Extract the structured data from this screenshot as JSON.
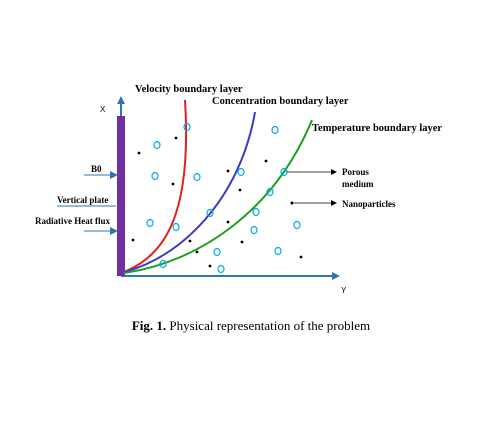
{
  "labels": {
    "velocity": "Velocity boundary layer",
    "concentration": "Concentration boundary layer",
    "temperature": "Temperature boundary layer",
    "axis_x": "X",
    "axis_y": "Y",
    "b0": "B0",
    "vertical_plate": "Vertical plate",
    "radiative_heat_flux": "Radiative Heat flux",
    "porous_medium_line1": "Porous",
    "porous_medium_line2": "medium",
    "nanoparticles": "Nanoparticles"
  },
  "caption": {
    "number": "Fig. 1.",
    "text": " Physical representation of the problem"
  },
  "colors": {
    "plate": "#7030a0",
    "axis": "#2e75b6",
    "velocity_curve": "#e02020",
    "concentration_curve": "#3a3ac8",
    "temperature_curve": "#1aa01a",
    "particle_circle": "#00aaee",
    "particle_dot": "#000000"
  }
}
